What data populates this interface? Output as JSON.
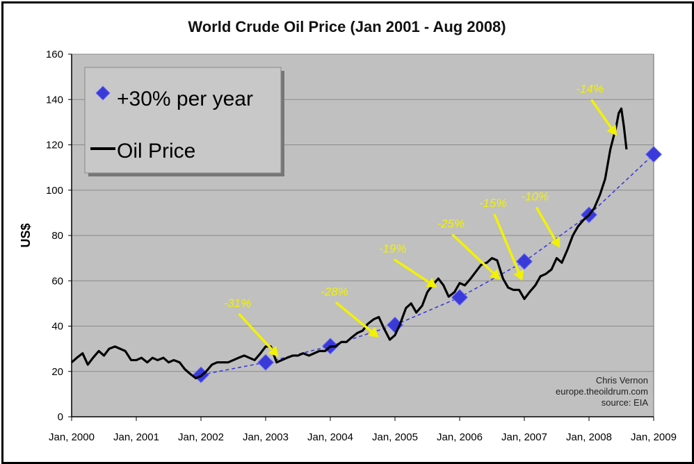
{
  "chart_data": {
    "type": "line",
    "title": "World Crude Oil Price (Jan 2001 - Aug 2008)",
    "ylabel": "US$",
    "xlabel": "",
    "ylim": [
      0,
      160
    ],
    "yticks": [
      0,
      20,
      40,
      60,
      80,
      100,
      120,
      140,
      160
    ],
    "xlim": [
      2000,
      2009
    ],
    "xticks": [
      {
        "x": 2000,
        "label": "Jan, 2000"
      },
      {
        "x": 2001,
        "label": "Jan, 2001"
      },
      {
        "x": 2002,
        "label": "Jan, 2002"
      },
      {
        "x": 2003,
        "label": "Jan, 2003"
      },
      {
        "x": 2004,
        "label": "Jan, 2004"
      },
      {
        "x": 2005,
        "label": "Jan, 2005"
      },
      {
        "x": 2006,
        "label": "Jan, 2006"
      },
      {
        "x": 2007,
        "label": "Jan, 2007"
      },
      {
        "x": 2008,
        "label": "Jan, 2008"
      },
      {
        "x": 2009,
        "label": "Jan, 2009"
      }
    ],
    "grid": true,
    "legend_position": "top-left",
    "colors": {
      "plot_background": "#c0c0c0",
      "oil_line": "#000000",
      "trend_marker": "#3a3ad8",
      "trend_line": "#3a3ad8",
      "annotation": "#f2f200"
    },
    "series": [
      {
        "name": "+30% per year",
        "style": "markers-dashed",
        "x": [
          2002,
          2003,
          2004,
          2005,
          2006,
          2007,
          2008,
          2009
        ],
        "y": [
          18.5,
          24,
          31.2,
          40.5,
          52.7,
          68.5,
          89.1,
          115.8
        ]
      },
      {
        "name": "Oil Price",
        "style": "line",
        "x": [
          2000.0,
          2000.08,
          2000.17,
          2000.25,
          2000.33,
          2000.42,
          2000.5,
          2000.58,
          2000.67,
          2000.75,
          2000.83,
          2000.92,
          2001.0,
          2001.08,
          2001.17,
          2001.25,
          2001.33,
          2001.42,
          2001.5,
          2001.58,
          2001.67,
          2001.75,
          2001.83,
          2001.92,
          2002.0,
          2002.08,
          2002.17,
          2002.25,
          2002.33,
          2002.42,
          2002.5,
          2002.58,
          2002.67,
          2002.75,
          2002.83,
          2002.92,
          2003.0,
          2003.08,
          2003.17,
          2003.25,
          2003.33,
          2003.42,
          2003.5,
          2003.58,
          2003.67,
          2003.75,
          2003.83,
          2003.92,
          2004.0,
          2004.08,
          2004.17,
          2004.25,
          2004.33,
          2004.42,
          2004.5,
          2004.58,
          2004.67,
          2004.75,
          2004.83,
          2004.92,
          2005.0,
          2005.08,
          2005.17,
          2005.25,
          2005.33,
          2005.42,
          2005.5,
          2005.58,
          2005.67,
          2005.75,
          2005.83,
          2005.92,
          2006.0,
          2006.08,
          2006.17,
          2006.25,
          2006.33,
          2006.42,
          2006.5,
          2006.58,
          2006.67,
          2006.75,
          2006.83,
          2006.92,
          2007.0,
          2007.08,
          2007.17,
          2007.25,
          2007.33,
          2007.42,
          2007.5,
          2007.58,
          2007.67,
          2007.75,
          2007.83,
          2007.92,
          2008.0,
          2008.08,
          2008.17,
          2008.25,
          2008.33,
          2008.42,
          2008.46,
          2008.5,
          2008.54,
          2008.58
        ],
        "y": [
          24,
          26,
          28,
          23,
          26,
          29,
          27,
          30,
          31,
          30,
          29,
          25,
          25,
          26,
          24,
          26,
          25,
          26,
          24,
          25,
          24,
          21,
          19,
          17,
          18,
          20,
          23,
          24,
          24,
          24,
          25,
          26,
          27,
          26,
          25,
          28,
          31,
          31,
          24,
          25,
          26,
          27,
          27,
          28,
          27,
          28,
          29,
          29,
          31,
          31,
          33,
          33,
          35,
          37,
          38,
          41,
          43,
          44,
          39,
          34,
          36,
          41,
          48,
          50,
          46,
          49,
          55,
          58,
          61,
          58,
          53,
          55,
          59,
          58,
          61,
          64,
          67,
          68,
          70,
          69,
          61,
          57,
          56,
          56,
          52,
          55,
          58,
          62,
          63,
          65,
          70,
          68,
          74,
          80,
          84,
          87,
          89,
          92,
          98,
          105,
          118,
          128,
          134,
          136,
          128,
          118
        ]
      }
    ],
    "annotations": [
      {
        "label": "-31%",
        "text_x": 2002.35,
        "text_y": 48.5,
        "arrow_to": [
          2003.2,
          26.5
        ]
      },
      {
        "label": "-28%",
        "text_x": 2003.85,
        "text_y": 53.5,
        "arrow_to": [
          2004.75,
          35
        ]
      },
      {
        "label": "-19%",
        "text_x": 2004.75,
        "text_y": 72.5,
        "arrow_to": [
          2005.65,
          57
        ]
      },
      {
        "label": "-25%",
        "text_x": 2005.65,
        "text_y": 83.5,
        "arrow_to": [
          2006.63,
          60.5
        ]
      },
      {
        "label": "-15%",
        "text_x": 2006.3,
        "text_y": 92.5,
        "arrow_to": [
          2006.97,
          60
        ]
      },
      {
        "label": "-10%",
        "text_x": 2006.95,
        "text_y": 95.5,
        "arrow_to": [
          2007.55,
          74.5
        ]
      },
      {
        "label": "-14%",
        "text_x": 2007.8,
        "text_y": 143,
        "arrow_to": [
          2008.43,
          124
        ]
      }
    ],
    "credits": [
      "Chris Vernon",
      "europe.theoildrum.com",
      "source: EIA"
    ]
  }
}
